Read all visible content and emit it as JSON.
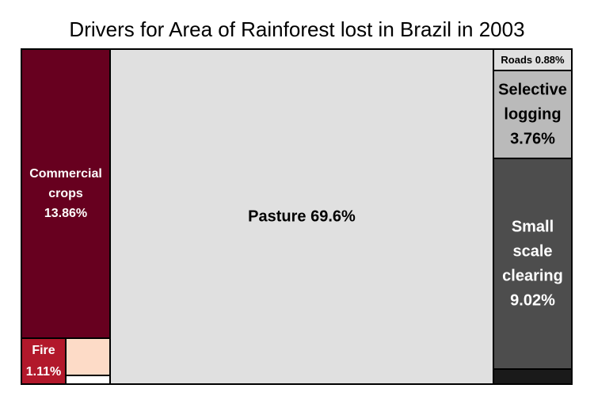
{
  "chart_data": {
    "type": "treemap",
    "title": "Drivers for Area of Rainforest lost in Brazil in 2003",
    "items": [
      {
        "label": "Commercial crops",
        "value": 13.86,
        "value_text": "13.86%",
        "color": "#67001f",
        "text_color": "#ffffff",
        "lines": [
          "Commercial",
          "crops",
          "13.86%"
        ]
      },
      {
        "label": "Fire",
        "value": 1.11,
        "value_text": "1.11%",
        "color": "#b2182b",
        "text_color": "#ffffff",
        "lines": [
          "Fire",
          "1.11%"
        ]
      },
      {
        "label": "",
        "value": 1.15,
        "value_text": "",
        "color": "#fddbc7",
        "text_color": "#000000",
        "lines": []
      },
      {
        "label": "",
        "value": 0.5,
        "value_text": "",
        "color": "#ffffff",
        "text_color": "#000000",
        "lines": []
      },
      {
        "label": "Pasture",
        "value": 69.6,
        "value_text": "69.6%",
        "color": "#e0e0e0",
        "text_color": "#000000",
        "lines": [
          "Pasture 69.6%"
        ]
      },
      {
        "label": "Roads",
        "value": 0.88,
        "value_text": "0.88%",
        "color": "#e0e0e0",
        "text_color": "#000000",
        "lines": [
          "Roads 0.88%"
        ]
      },
      {
        "label": "Selective logging",
        "value": 3.76,
        "value_text": "3.76%",
        "color": "#bababa",
        "text_color": "#000000",
        "lines": [
          "Selective",
          "logging",
          "3.76%"
        ]
      },
      {
        "label": "Small scale clearing",
        "value": 9.02,
        "value_text": "9.02%",
        "color": "#4d4d4d",
        "text_color": "#ffffff",
        "lines": [
          "Small",
          "scale",
          "clearing",
          "9.02%"
        ]
      },
      {
        "label": "",
        "value": 0.75,
        "value_text": "",
        "color": "#1a1a1a",
        "text_color": "#ffffff",
        "lines": []
      }
    ]
  }
}
